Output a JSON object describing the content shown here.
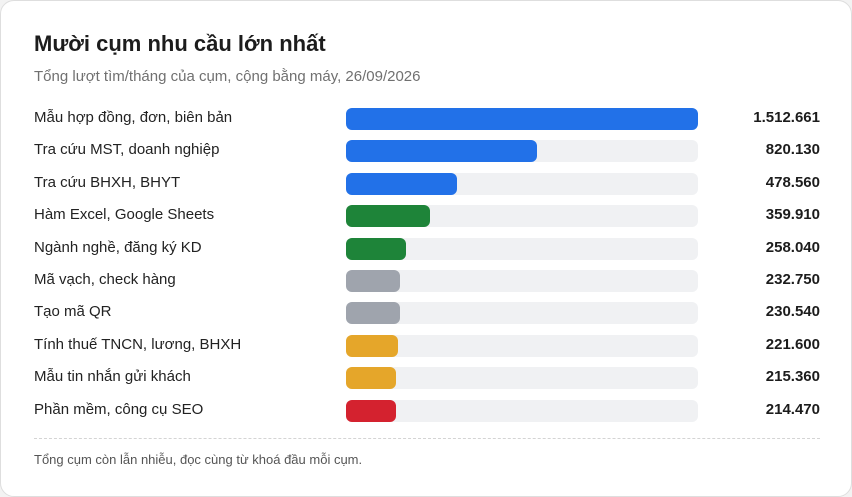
{
  "header": {
    "title": "Mười cụm nhu cầu lớn nhất",
    "subtitle": "Tổng lượt tìm/tháng của cụm, cộng bằng máy, 26/09/2026"
  },
  "footer": {
    "note": "Tổng cụm còn lẫn nhiễu, đọc cùng từ khoá đầu mỗi cụm."
  },
  "chart_data": {
    "type": "bar",
    "orientation": "horizontal",
    "title": "Mười cụm nhu cầu lớn nhất",
    "subtitle": "Tổng lượt tìm/tháng của cụm, cộng bằng máy, 26/09/2026",
    "xlim": [
      0,
      1512661
    ],
    "grid": false,
    "categories": [
      "Mẫu hợp đồng, đơn, biên bản",
      "Tra cứu MST, doanh nghiệp",
      "Tra cứu BHXH, BHYT",
      "Hàm Excel, Google Sheets",
      "Ngành nghề, đăng ký KD",
      "Mã vạch, check hàng",
      "Tạo mã QR",
      "Tính thuế TNCN, lương, BHXH",
      "Mẫu tin nhắn gửi khách",
      "Phần mềm, công cụ SEO"
    ],
    "values": [
      1512661,
      820130,
      478560,
      359910,
      258040,
      232750,
      230540,
      221600,
      215360,
      214470
    ],
    "value_labels": [
      "1.512.661",
      "820.130",
      "478.560",
      "359.910",
      "258.040",
      "232.750",
      "230.540",
      "221.600",
      "215.360",
      "214.470"
    ],
    "colors": [
      "#2271e8",
      "#2271e8",
      "#2271e8",
      "#1e8439",
      "#1e8439",
      "#9fa4ad",
      "#9fa4ad",
      "#e5a62a",
      "#e5a62a",
      "#d4222f"
    ],
    "track_color": "#f0f1f3"
  }
}
